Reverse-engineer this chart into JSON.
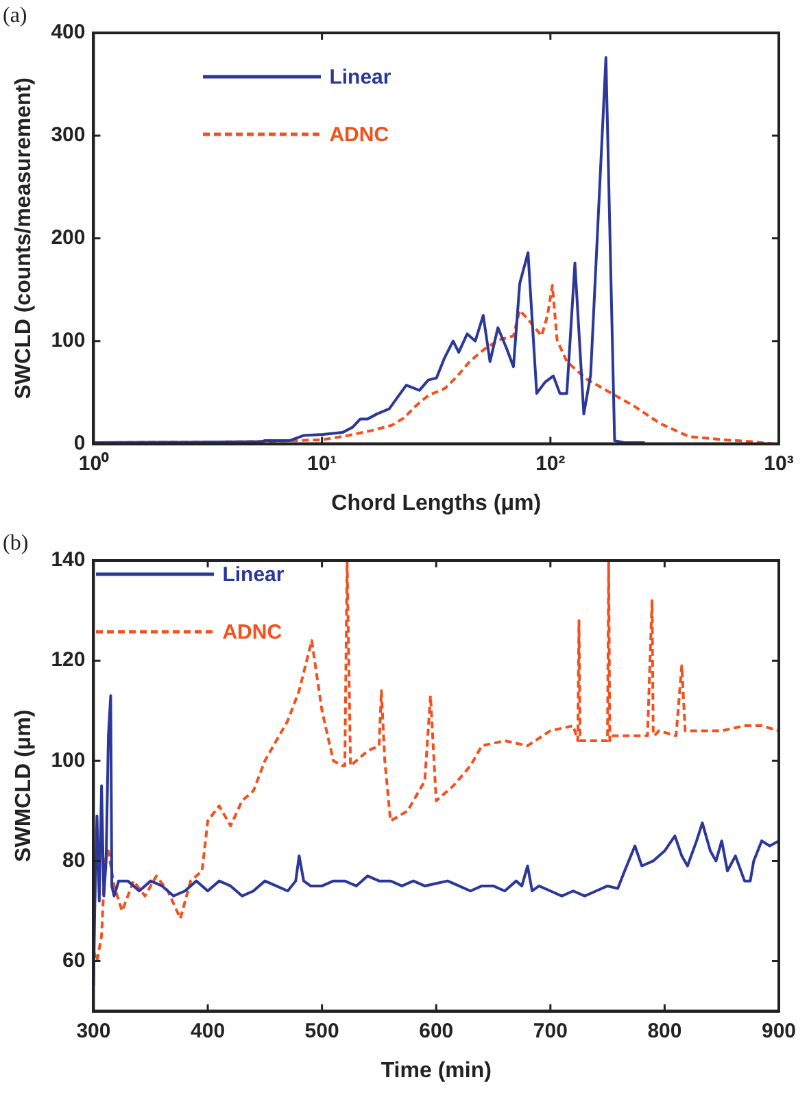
{
  "chart_data": [
    {
      "type": "line",
      "title": "(a)",
      "xlabel": "Chord Lengths (μm)",
      "ylabel": "SWCLD (counts/measurement)",
      "log": "x",
      "xlim": [
        1,
        1000
      ],
      "xticks": [
        {
          "value": 1,
          "label": "10⁰"
        },
        {
          "value": 10,
          "label": "10¹"
        },
        {
          "value": 100,
          "label": "10²"
        },
        {
          "value": 1000,
          "label": "10³"
        }
      ],
      "ylim": [
        0,
        400
      ],
      "yticks": [
        0,
        100,
        200,
        300,
        400
      ],
      "grid": false,
      "legend": "top left",
      "marker": "none",
      "series": [
        {
          "name": "Linear",
          "color": "#2b3899",
          "line_style": "solid",
          "x": [
            1,
            5.4,
            5.6,
            7.2,
            8.3,
            10.1,
            12.3,
            13.6,
            14.7,
            15.8,
            17.4,
            19.7,
            21.7,
            23.4,
            26.7,
            29.2,
            31.7,
            34.3,
            37.5,
            39.7,
            43.2,
            46.9,
            50.8,
            54.4,
            58.9,
            64,
            68.9,
            73.4,
            79.8,
            87.1,
            94.8,
            103,
            110,
            118,
            128,
            140,
            150,
            175,
            191,
            213,
            259
          ],
          "values": [
            1,
            2,
            3,
            3,
            8,
            9,
            11,
            16,
            24,
            24,
            29,
            34,
            47,
            57,
            52,
            62,
            64,
            83,
            100,
            89,
            107,
            100,
            125,
            80,
            113,
            94,
            75,
            156,
            186,
            49,
            60,
            66,
            49,
            49,
            176,
            29,
            67,
            376,
            3,
            1,
            1
          ]
        },
        {
          "name": "ADNC",
          "color": "#f4501e",
          "line_style": "dashed",
          "x": [
            1,
            4.9,
            7.6,
            10.1,
            13,
            16.6,
            20.2,
            22.8,
            25.8,
            29.2,
            34.6,
            39.2,
            44.3,
            51.3,
            59.4,
            68.9,
            73.4,
            79.8,
            91.5,
            97.1,
            102,
            107,
            118,
            144,
            179,
            235,
            301,
            404,
            569,
            764,
            929
          ],
          "values": [
            1,
            2,
            3,
            4,
            8,
            13,
            18,
            25,
            37,
            47,
            54,
            66,
            80,
            92,
            101,
            105,
            130,
            121,
            105,
            125,
            154,
            101,
            80,
            63,
            51,
            36,
            20,
            7,
            4,
            2,
            0
          ]
        }
      ]
    },
    {
      "type": "line",
      "title": "(b)",
      "xlabel": "Time (min)",
      "ylabel": "SWMCLD (μm)",
      "xlim": [
        300,
        900
      ],
      "xticks": [
        300,
        400,
        500,
        600,
        700,
        800,
        900
      ],
      "ylim": [
        50,
        140
      ],
      "yticks": [
        60,
        80,
        100,
        120,
        140
      ],
      "grid": false,
      "legend": "top left",
      "marker": "none",
      "series": [
        {
          "name": "Linear",
          "color": "#2b3899",
          "line_style": "solid",
          "x": [
            300,
            301,
            303,
            305,
            307,
            309,
            311,
            313,
            315,
            316,
            318,
            322,
            330,
            340,
            350,
            360,
            370,
            380,
            390,
            400,
            410,
            420,
            430,
            440,
            450,
            460,
            470,
            477,
            480,
            484,
            490,
            500,
            510,
            520,
            530,
            540,
            550,
            560,
            570,
            580,
            590,
            600,
            610,
            620,
            630,
            640,
            650,
            660,
            670,
            675,
            680,
            684,
            690,
            700,
            710,
            720,
            730,
            740,
            750,
            759,
            765,
            774,
            780,
            790,
            800,
            809,
            815,
            820,
            828,
            833,
            840,
            845,
            850,
            855,
            862,
            870,
            875,
            878,
            885,
            892,
            900
          ],
          "values": [
            55,
            70,
            89,
            72,
            95,
            73,
            80,
            105,
            113,
            75,
            73,
            76,
            76,
            74,
            76,
            75,
            73,
            74,
            76,
            74,
            76,
            75,
            73,
            74,
            76,
            75,
            74,
            76,
            81,
            76,
            75,
            75,
            76,
            76,
            75,
            77,
            76,
            76,
            75,
            76,
            75,
            75.5,
            76,
            75,
            74,
            75,
            75,
            74,
            76,
            75,
            79,
            74,
            75,
            74,
            73,
            74,
            73,
            74,
            75,
            74.5,
            78,
            83,
            79,
            80,
            82,
            85,
            81,
            79,
            84,
            87.6,
            82,
            80,
            84,
            78,
            81,
            76,
            76,
            80,
            84,
            83,
            84
          ]
        },
        {
          "name": "ADNC",
          "color": "#f4501e",
          "line_style": "dashed",
          "x": [
            300,
            303,
            307,
            310,
            313,
            318,
            325,
            335,
            345,
            355,
            365,
            376,
            385,
            395,
            400,
            410,
            420,
            430,
            440,
            450,
            460,
            470,
            480,
            491,
            500,
            510,
            518,
            520,
            522,
            525,
            540,
            550,
            552,
            555,
            560,
            575,
            590,
            595,
            600,
            605,
            615,
            630,
            640,
            660,
            680,
            700,
            720,
            724,
            725,
            726,
            730,
            750,
            751,
            752,
            753,
            755,
            770,
            785,
            789,
            790,
            791,
            795,
            810,
            815,
            818,
            830,
            850,
            870,
            885,
            900
          ],
          "values": [
            62,
            60,
            65,
            80,
            82,
            75,
            70,
            76,
            73,
            77,
            74,
            68.5,
            76,
            78,
            88,
            91,
            87,
            92,
            94,
            100,
            104,
            108,
            114,
            124,
            110,
            100,
            99,
            99,
            140,
            99,
            102,
            103,
            114,
            100,
            88,
            90,
            96,
            113,
            92,
            93,
            95,
            99,
            103,
            104,
            103,
            106,
            107,
            104,
            128,
            104,
            104,
            104,
            140,
            104,
            105,
            105,
            105,
            105,
            132,
            106,
            105,
            106,
            105,
            119,
            106,
            106,
            106,
            107,
            107,
            106
          ]
        }
      ]
    }
  ]
}
